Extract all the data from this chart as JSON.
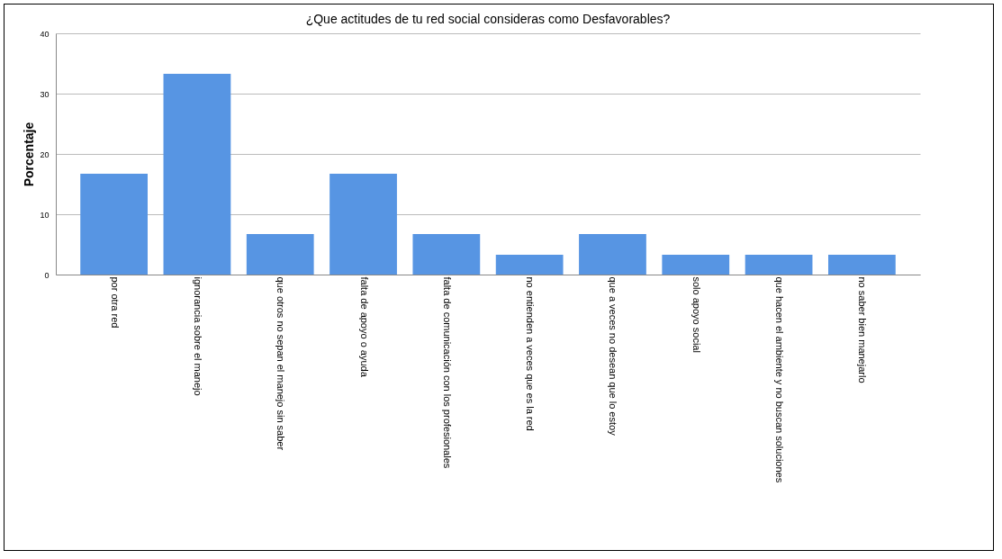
{
  "chart_data": {
    "type": "bar",
    "title": "¿Que actitudes de tu red social consideras como Desfavorables?",
    "ylabel": "Porcentaje",
    "categories": [
      "por otra red",
      "ignorancia sobre el manejo",
      "que otros no sepan el manejo sin saber",
      "falta de apoyo o ayuda",
      "falta de comunicación con los profesionales",
      "no entienden a veces que es la red",
      "que a veces no desean que lo estoy",
      "solo apoyo social",
      "que hacen el ambiente y no buscan soluciones",
      "no saber bien manejarlo"
    ],
    "values": [
      16.7,
      33.3,
      6.7,
      16.7,
      6.7,
      3.3,
      6.7,
      3.3,
      3.3,
      3.3
    ],
    "color": "#5795e3",
    "ylim": [
      0,
      40
    ],
    "yticks": [
      0,
      10,
      20,
      30,
      40
    ],
    "grid": "y"
  }
}
